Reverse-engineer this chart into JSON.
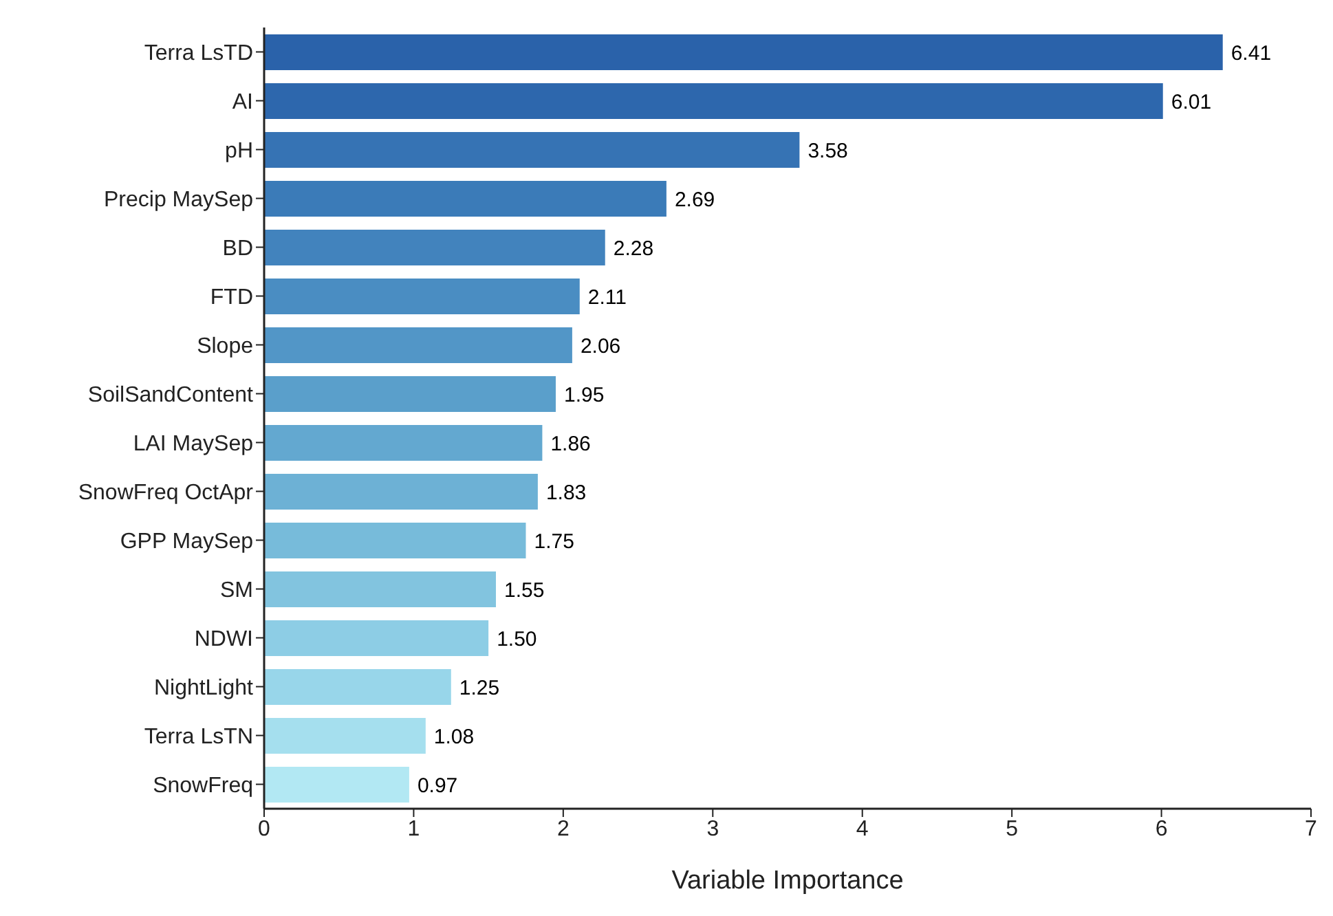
{
  "chart_data": {
    "type": "bar",
    "orientation": "horizontal",
    "xlabel": "Variable Importance",
    "categories": [
      "Terra LsTD",
      "AI",
      "pH",
      "Precip MaySep",
      "BD",
      "FTD",
      "Slope",
      "SoilSandContent",
      "LAI MaySep",
      "SnowFreq OctApr",
      "GPP MaySep",
      "SM",
      "NDWI",
      "NightLight",
      "Terra LsTN",
      "SnowFreq"
    ],
    "values": [
      6.41,
      6.01,
      3.58,
      2.69,
      2.28,
      2.11,
      2.06,
      1.95,
      1.86,
      1.83,
      1.75,
      1.55,
      1.5,
      1.25,
      1.08,
      0.97
    ],
    "colors": [
      "#2a62aa",
      "#2d67ad",
      "#3673b4",
      "#3b7bb8",
      "#4283bd",
      "#4a8dc2",
      "#5296c7",
      "#5a9fcb",
      "#63a8d0",
      "#6db1d5",
      "#77bbda",
      "#82c4df",
      "#8dcde5",
      "#98d6ea",
      "#a5dfee",
      "#b2e8f3"
    ],
    "value_labels": [
      "6.41",
      "6.01",
      "3.58",
      "2.69",
      "2.28",
      "2.11",
      "2.06",
      "1.95",
      "1.86",
      "1.83",
      "1.75",
      "1.55",
      "1.50",
      "1.25",
      "1.08",
      "0.97"
    ],
    "xlim": [
      0,
      7
    ],
    "xticks": [
      0,
      1,
      2,
      3,
      4,
      5,
      6,
      7
    ],
    "grid": false
  }
}
